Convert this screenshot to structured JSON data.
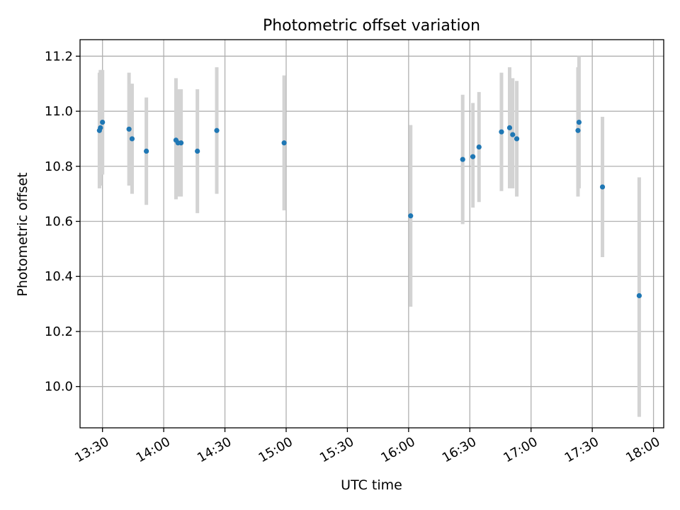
{
  "chart_data": {
    "type": "scatter",
    "title": "Photometric offset variation",
    "xlabel": "UTC time",
    "ylabel": "Photometric offset",
    "xlim": [
      "13:19",
      "18:05"
    ],
    "ylim": [
      9.85,
      11.26
    ],
    "x_ticks": [
      "13:30",
      "14:00",
      "14:30",
      "15:00",
      "15:30",
      "16:00",
      "16:30",
      "17:00",
      "17:30",
      "18:00"
    ],
    "y_ticks": [
      "10.0",
      "10.2",
      "10.4",
      "10.6",
      "10.8",
      "11.0",
      "11.2"
    ],
    "grid": true,
    "point_color": "#1f77b4",
    "errorbar_color": "#d3d3d3",
    "points": [
      {
        "x": "13:28:30",
        "y": 10.93,
        "lo": 10.72,
        "hi": 11.14
      },
      {
        "x": "13:29:00",
        "y": 10.94,
        "lo": 10.73,
        "hi": 11.15
      },
      {
        "x": "13:30:00",
        "y": 10.96,
        "lo": 10.77,
        "hi": 11.15
      },
      {
        "x": "13:43:00",
        "y": 10.935,
        "lo": 10.73,
        "hi": 11.14
      },
      {
        "x": "13:44:30",
        "y": 10.9,
        "lo": 10.7,
        "hi": 11.1
      },
      {
        "x": "13:51:30",
        "y": 10.855,
        "lo": 10.66,
        "hi": 11.05
      },
      {
        "x": "14:06:00",
        "y": 10.895,
        "lo": 10.68,
        "hi": 11.12
      },
      {
        "x": "14:07:00",
        "y": 10.885,
        "lo": 10.69,
        "hi": 11.08
      },
      {
        "x": "14:08:30",
        "y": 10.885,
        "lo": 10.69,
        "hi": 11.08
      },
      {
        "x": "14:16:30",
        "y": 10.855,
        "lo": 10.63,
        "hi": 11.08
      },
      {
        "x": "14:26:00",
        "y": 10.93,
        "lo": 10.7,
        "hi": 11.16
      },
      {
        "x": "14:59:00",
        "y": 10.885,
        "lo": 10.64,
        "hi": 11.13
      },
      {
        "x": "16:01:00",
        "y": 10.62,
        "lo": 10.29,
        "hi": 10.95
      },
      {
        "x": "16:26:30",
        "y": 10.825,
        "lo": 10.59,
        "hi": 11.06
      },
      {
        "x": "16:31:30",
        "y": 10.835,
        "lo": 10.65,
        "hi": 11.03
      },
      {
        "x": "16:34:30",
        "y": 10.87,
        "lo": 10.67,
        "hi": 11.07
      },
      {
        "x": "16:45:30",
        "y": 10.925,
        "lo": 10.71,
        "hi": 11.14
      },
      {
        "x": "16:49:30",
        "y": 10.94,
        "lo": 10.72,
        "hi": 11.16
      },
      {
        "x": "16:51:00",
        "y": 10.915,
        "lo": 10.72,
        "hi": 11.12
      },
      {
        "x": "16:53:00",
        "y": 10.9,
        "lo": 10.69,
        "hi": 11.11
      },
      {
        "x": "17:23:00",
        "y": 10.93,
        "lo": 10.69,
        "hi": 11.16
      },
      {
        "x": "17:23:30",
        "y": 10.96,
        "lo": 10.72,
        "hi": 11.2
      },
      {
        "x": "17:35:00",
        "y": 10.725,
        "lo": 10.47,
        "hi": 10.98
      },
      {
        "x": "17:53:00",
        "y": 10.33,
        "lo": 9.89,
        "hi": 10.76
      }
    ]
  }
}
